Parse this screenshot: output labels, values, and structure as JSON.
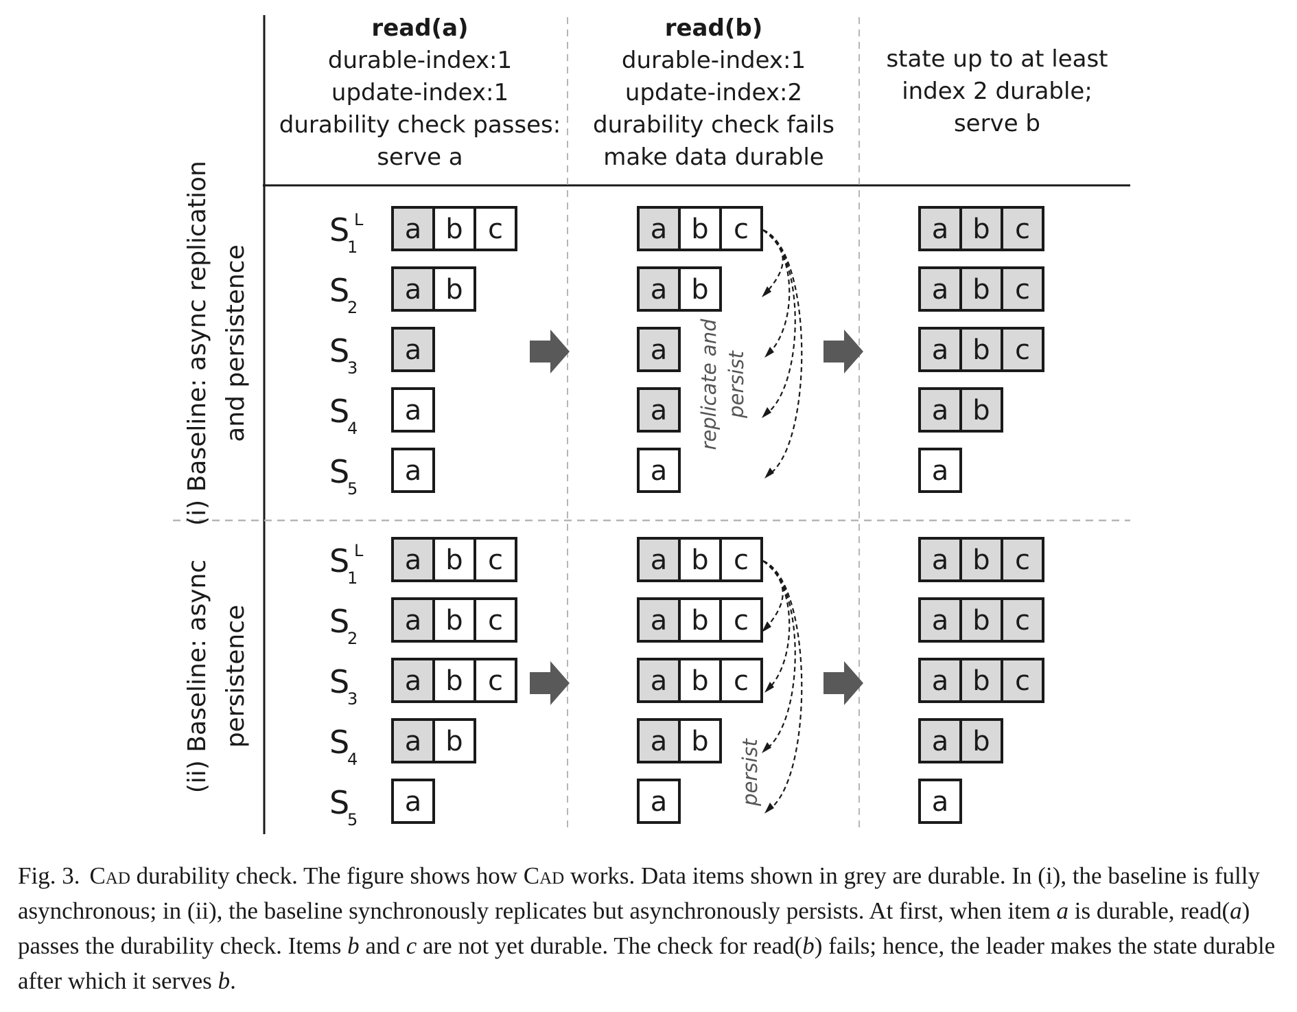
{
  "columns": [
    {
      "title": "read(a)",
      "lines": [
        "durable-index:1",
        "update-index:1",
        "durability check passes:",
        "serve a"
      ]
    },
    {
      "title": "read(b)",
      "lines": [
        "durable-index:1",
        "update-index:2",
        "durability check fails",
        "make data durable"
      ]
    },
    {
      "title": "",
      "lines": [
        "state up to at least",
        "index 2 durable;",
        "serve b"
      ]
    }
  ],
  "sections": [
    {
      "label_lines": [
        "(i) Baseline: async replication",
        "and persistence"
      ],
      "annotation_lines": [
        "replicate and",
        "persist"
      ],
      "servers": [
        {
          "name": "S",
          "sub": "1",
          "sup": "L",
          "logs": [
            [
              [
                "a",
                true
              ],
              [
                "b",
                false
              ],
              [
                "c",
                false
              ]
            ],
            [
              [
                "a",
                true
              ],
              [
                "b",
                false
              ],
              [
                "c",
                false
              ]
            ],
            [
              [
                "a",
                true
              ],
              [
                "b",
                true
              ],
              [
                "c",
                true
              ]
            ]
          ]
        },
        {
          "name": "S",
          "sub": "2",
          "sup": "",
          "logs": [
            [
              [
                "a",
                true
              ],
              [
                "b",
                false
              ]
            ],
            [
              [
                "a",
                true
              ],
              [
                "b",
                false
              ]
            ],
            [
              [
                "a",
                true
              ],
              [
                "b",
                true
              ],
              [
                "c",
                true
              ]
            ]
          ]
        },
        {
          "name": "S",
          "sub": "3",
          "sup": "",
          "logs": [
            [
              [
                "a",
                true
              ]
            ],
            [
              [
                "a",
                true
              ]
            ],
            [
              [
                "a",
                true
              ],
              [
                "b",
                true
              ],
              [
                "c",
                true
              ]
            ]
          ]
        },
        {
          "name": "S",
          "sub": "4",
          "sup": "",
          "logs": [
            [
              [
                "a",
                false
              ]
            ],
            [
              [
                "a",
                true
              ]
            ],
            [
              [
                "a",
                true
              ],
              [
                "b",
                true
              ]
            ]
          ]
        },
        {
          "name": "S",
          "sub": "5",
          "sup": "",
          "logs": [
            [
              [
                "a",
                false
              ]
            ],
            [
              [
                "a",
                false
              ]
            ],
            [
              [
                "a",
                false
              ]
            ]
          ]
        }
      ]
    },
    {
      "label_lines": [
        "(ii) Baseline: async",
        "persistence"
      ],
      "annotation_lines": [
        "persist"
      ],
      "servers": [
        {
          "name": "S",
          "sub": "1",
          "sup": "L",
          "logs": [
            [
              [
                "a",
                true
              ],
              [
                "b",
                false
              ],
              [
                "c",
                false
              ]
            ],
            [
              [
                "a",
                true
              ],
              [
                "b",
                false
              ],
              [
                "c",
                false
              ]
            ],
            [
              [
                "a",
                true
              ],
              [
                "b",
                true
              ],
              [
                "c",
                true
              ]
            ]
          ]
        },
        {
          "name": "S",
          "sub": "2",
          "sup": "",
          "logs": [
            [
              [
                "a",
                true
              ],
              [
                "b",
                false
              ],
              [
                "c",
                false
              ]
            ],
            [
              [
                "a",
                true
              ],
              [
                "b",
                false
              ],
              [
                "c",
                false
              ]
            ],
            [
              [
                "a",
                true
              ],
              [
                "b",
                true
              ],
              [
                "c",
                true
              ]
            ]
          ]
        },
        {
          "name": "S",
          "sub": "3",
          "sup": "",
          "logs": [
            [
              [
                "a",
                true
              ],
              [
                "b",
                false
              ],
              [
                "c",
                false
              ]
            ],
            [
              [
                "a",
                true
              ],
              [
                "b",
                false
              ],
              [
                "c",
                false
              ]
            ],
            [
              [
                "a",
                true
              ],
              [
                "b",
                true
              ],
              [
                "c",
                true
              ]
            ]
          ]
        },
        {
          "name": "S",
          "sub": "4",
          "sup": "",
          "logs": [
            [
              [
                "a",
                true
              ],
              [
                "b",
                false
              ]
            ],
            [
              [
                "a",
                true
              ],
              [
                "b",
                false
              ]
            ],
            [
              [
                "a",
                true
              ],
              [
                "b",
                true
              ]
            ]
          ]
        },
        {
          "name": "S",
          "sub": "5",
          "sup": "",
          "logs": [
            [
              [
                "a",
                false
              ]
            ],
            [
              [
                "a",
                false
              ]
            ],
            [
              [
                "a",
                false
              ]
            ]
          ]
        }
      ]
    }
  ],
  "colors": {
    "durable": "#d9d9d9",
    "not_durable": "#ffffff",
    "stroke": "#1a1a1a",
    "arrow": "#595959",
    "dashed": "#b5b5b5",
    "annotation": "#555555"
  },
  "caption": {
    "label": "Fig. 3.",
    "parts": [
      [
        "sc",
        "Cad"
      ],
      [
        "t",
        " durability check. The figure shows how "
      ],
      [
        "sc",
        "Cad"
      ],
      [
        "t",
        " works. Data items shown in grey are durable. In (i), the baseline is fully asynchronous; in (ii), the baseline synchronously replicates but asynchronously persists. At first, when item "
      ],
      [
        "i",
        "a"
      ],
      [
        "t",
        " is durable, read("
      ],
      [
        "i",
        "a"
      ],
      [
        "t",
        ") passes the durability check. Items "
      ],
      [
        "i",
        "b"
      ],
      [
        "t",
        " and "
      ],
      [
        "i",
        "c"
      ],
      [
        "t",
        " are not yet durable. The check for read("
      ],
      [
        "i",
        "b"
      ],
      [
        "t",
        ") fails; hence, the leader makes the state durable after which it serves "
      ],
      [
        "i",
        "b"
      ],
      [
        "t",
        "."
      ]
    ]
  }
}
